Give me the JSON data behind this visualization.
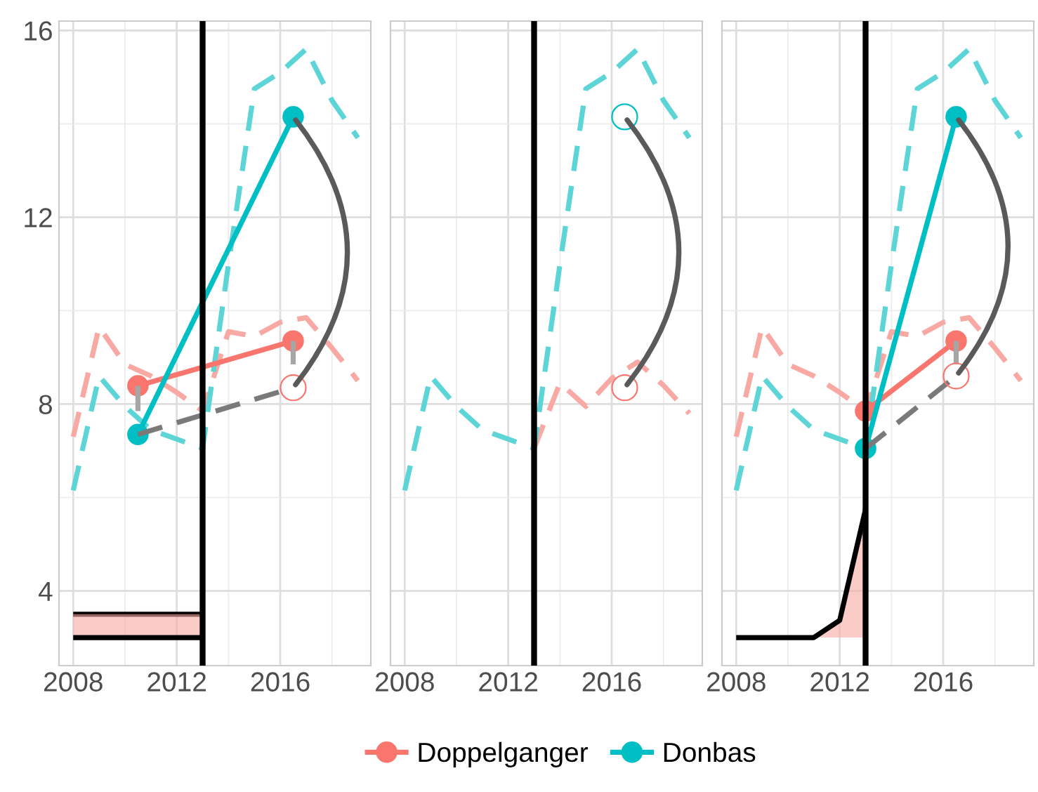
{
  "chart_data": [
    {
      "type": "line",
      "xlim": [
        2007.45,
        2019.5
      ],
      "ylim": [
        2.4,
        16.2
      ],
      "xticks": [
        2008,
        {
          "value": 2010,
          "label": null
        },
        2012,
        {
          "value": 2014,
          "label": null
        },
        2016,
        {
          "value": 2018,
          "label": null
        }
      ],
      "yticks": [
        4,
        {
          "value": 6,
          "label": null
        },
        8,
        {
          "value": 10,
          "label": null
        },
        12,
        {
          "value": 14,
          "label": null
        },
        16
      ],
      "grid": true,
      "legend": "bottom",
      "ref_lines": [
        {
          "axis": "x",
          "value": 2013,
          "color": "#000000"
        }
      ],
      "series": [
        {
          "type": "line",
          "x": [
            2008,
            2009,
            2010,
            2011,
            2012,
            2013,
            2014,
            2015,
            2016,
            2017,
            2018,
            2019
          ],
          "values": [
            7.3,
            9.65,
            8.85,
            8.6,
            8.25,
            7.85,
            9.55,
            9.45,
            9.75,
            9.85,
            9.2,
            8.5
          ],
          "color": "#f9a9a3",
          "line_style": "dashed",
          "marker": "none"
        },
        {
          "type": "line",
          "x": [
            2008,
            2009,
            2010,
            2011,
            2012,
            2013,
            2014,
            2015,
            2016,
            2017,
            2018,
            2019
          ],
          "values": [
            6.15,
            8.6,
            7.95,
            7.45,
            7.25,
            7.05,
            11.0,
            14.75,
            15.1,
            15.6,
            14.5,
            13.7
          ],
          "color": "#5dd5d7",
          "line_style": "dashed",
          "marker": "none"
        },
        {
          "type": "line",
          "x": [
            2008,
            2013
          ],
          "values": [
            3.5,
            3.5
          ],
          "color": "#000000",
          "line_style": "solid",
          "marker": "none"
        },
        {
          "type": "line",
          "x": [
            2008,
            2013
          ],
          "values": [
            3.0,
            3.0
          ],
          "lower": [
            3.0,
            3.0
          ],
          "upper": [
            3.5,
            3.5
          ],
          "color": "#000000",
          "line_style": "solid",
          "marker": "none"
        },
        {
          "type": "line",
          "x": [
            2010.5,
            2016.5
          ],
          "values": [
            8.39,
            9.35
          ],
          "name": "Doppelganger",
          "color": "#f8766d",
          "line_style": "solid",
          "marker": "circle"
        },
        {
          "type": "line",
          "x": [
            2010.5,
            2016.5
          ],
          "values": [
            7.35,
            14.15
          ],
          "name": "Donbas",
          "color": "#00bfc4",
          "line_style": "solid",
          "marker": "circle"
        },
        {
          "type": "line",
          "x": [
            2010.5,
            2010.5
          ],
          "values": [
            8.39,
            7.85
          ],
          "color": "#a6a6a6",
          "line_style": "solid",
          "marker": "none"
        },
        {
          "type": "line",
          "x": [
            2016.5,
            2016.5
          ],
          "values": [
            9.35,
            8.85
          ],
          "color": "#a6a6a6",
          "line_style": "solid",
          "marker": "none"
        },
        {
          "type": "line",
          "x": [
            2010.5,
            2016.5
          ],
          "values": [
            7.35,
            8.35
          ],
          "color": "#7a7a7a",
          "line_style": "dashed",
          "marker": "none"
        },
        {
          "type": "scatter",
          "x": [
            2016.5
          ],
          "values": [
            8.35
          ],
          "color": "#f8766d",
          "marker": "circle"
        }
      ]
    },
    {
      "type": "line",
      "xlim": [
        2007.45,
        2019.5
      ],
      "ylim": [
        2.4,
        16.2
      ],
      "xticks": [
        2008,
        {
          "value": 2010,
          "label": null
        },
        2012,
        {
          "value": 2014,
          "label": null
        },
        2016,
        {
          "value": 2018,
          "label": null
        }
      ],
      "yticks": [
        4,
        {
          "value": 6,
          "label": null
        },
        8,
        {
          "value": 10,
          "label": null
        },
        12,
        {
          "value": 14,
          "label": null
        },
        16
      ],
      "grid": true,
      "tick_labels": "x",
      "ref_lines": [
        {
          "axis": "x",
          "value": 2013,
          "color": "#000000"
        }
      ],
      "series": [
        {
          "type": "line",
          "x": [
            2013,
            2014,
            2015,
            2016,
            2017,
            2018,
            2019
          ],
          "values": [
            7.05,
            8.45,
            7.95,
            8.55,
            8.9,
            8.4,
            7.8
          ],
          "color": "#f9a9a3",
          "line_style": "dashed",
          "marker": "none"
        },
        {
          "type": "line",
          "x": [
            2008,
            2009,
            2010,
            2011,
            2012,
            2013,
            2014,
            2015,
            2016,
            2017,
            2018,
            2019
          ],
          "values": [
            6.15,
            8.6,
            7.95,
            7.45,
            7.25,
            7.05,
            11.0,
            14.75,
            15.1,
            15.6,
            14.5,
            13.7
          ],
          "color": "#5dd5d7",
          "line_style": "dashed",
          "marker": "none"
        },
        {
          "type": "scatter",
          "x": [
            2016.5
          ],
          "values": [
            14.15
          ],
          "color": "#00bfc4",
          "marker": "circle"
        },
        {
          "type": "scatter",
          "x": [
            2016.5
          ],
          "values": [
            8.35
          ],
          "color": "#f8766d",
          "marker": "circle"
        }
      ]
    },
    {
      "type": "line",
      "xlim": [
        2007.45,
        2019.5
      ],
      "ylim": [
        2.4,
        16.2
      ],
      "xticks": [
        2008,
        {
          "value": 2010,
          "label": null
        },
        2012,
        {
          "value": 2014,
          "label": null
        },
        2016,
        {
          "value": 2018,
          "label": null
        }
      ],
      "yticks": [
        4,
        {
          "value": 6,
          "label": null
        },
        8,
        {
          "value": 10,
          "label": null
        },
        12,
        {
          "value": 14,
          "label": null
        },
        16
      ],
      "grid": true,
      "tick_labels": "x",
      "ref_lines": [
        {
          "axis": "x",
          "value": 2013,
          "color": "#000000"
        }
      ],
      "series": [
        {
          "type": "line",
          "x": [
            2008,
            2009,
            2010,
            2011,
            2012,
            2013,
            2014,
            2015,
            2016,
            2017,
            2018,
            2019
          ],
          "values": [
            7.3,
            9.65,
            8.85,
            8.6,
            8.25,
            7.85,
            9.55,
            9.45,
            9.75,
            9.85,
            9.2,
            8.5
          ],
          "color": "#f9a9a3",
          "line_style": "dashed",
          "marker": "none"
        },
        {
          "type": "line",
          "x": [
            2008,
            2009,
            2010,
            2011,
            2012,
            2013,
            2014,
            2015,
            2016,
            2017,
            2018,
            2019
          ],
          "values": [
            6.15,
            8.6,
            7.95,
            7.45,
            7.25,
            7.05,
            11.0,
            14.75,
            15.1,
            15.6,
            14.5,
            13.7
          ],
          "color": "#5dd5d7",
          "line_style": "dashed",
          "marker": "none"
        },
        {
          "type": "line",
          "x": [
            2008,
            2011,
            2012,
            2013
          ],
          "values": [
            3.0,
            3.0,
            3.37,
            5.75
          ],
          "lower": [
            3.0,
            3.0,
            3.0,
            3.0
          ],
          "upper": [
            3.0,
            3.0,
            3.37,
            5.75
          ],
          "color": "#000000",
          "line_style": "solid",
          "marker": "none"
        },
        {
          "type": "line",
          "x": [
            2013,
            2016.5
          ],
          "values": [
            7.85,
            9.35
          ],
          "color": "#f8766d",
          "line_style": "solid",
          "marker": "circle"
        },
        {
          "type": "line",
          "x": [
            2013,
            2016.5
          ],
          "values": [
            7.05,
            14.15
          ],
          "color": "#00bfc4",
          "line_style": "solid",
          "marker": "circle"
        },
        {
          "type": "line",
          "x": [
            2016.5,
            2016.5
          ],
          "values": [
            9.35,
            8.85
          ],
          "color": "#a6a6a6",
          "line_style": "solid",
          "marker": "none"
        },
        {
          "type": "line",
          "x": [
            2013,
            2016.5
          ],
          "values": [
            7.05,
            8.6
          ],
          "color": "#7a7a7a",
          "line_style": "dashed",
          "marker": "none"
        },
        {
          "type": "scatter",
          "x": [
            2016.5
          ],
          "values": [
            8.6
          ],
          "color": "#f8766d",
          "marker": "circle"
        }
      ]
    }
  ]
}
